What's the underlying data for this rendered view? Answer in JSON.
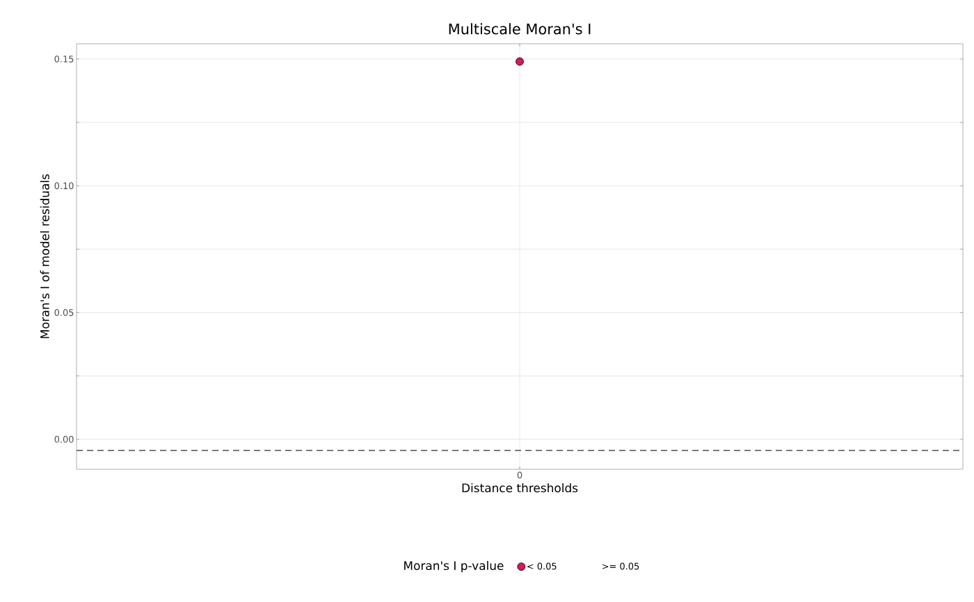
{
  "chart_data": {
    "type": "scatter",
    "title": "Multiscale Moran's I",
    "xlabel": "Distance thresholds",
    "ylabel": "Moran's I of model residuals",
    "legend_title": "Moran's I p-value",
    "categories": [
      "0"
    ],
    "series": [
      {
        "name": "< 0.05",
        "color": "#d6195a",
        "values": [
          0.149
        ]
      },
      {
        "name": ">= 0.05",
        "values": [
          null
        ]
      }
    ],
    "ylim": [
      -0.0118,
      0.156
    ],
    "yticks": [
      {
        "value": 0,
        "label": "0.00"
      },
      {
        "value": 0.025,
        "label": null
      },
      {
        "value": 0.05,
        "label": "0.05"
      },
      {
        "value": 0.075,
        "label": null
      },
      {
        "value": 0.1,
        "label": "0.10"
      },
      {
        "value": 0.125,
        "label": null
      },
      {
        "value": 0.15,
        "label": "0.15"
      }
    ],
    "ref_lines": [
      {
        "axis": "y",
        "value": -0.0044,
        "color": "#4d4d4d",
        "line_style": "dashed"
      }
    ],
    "grid": true,
    "legend": "bottom"
  }
}
